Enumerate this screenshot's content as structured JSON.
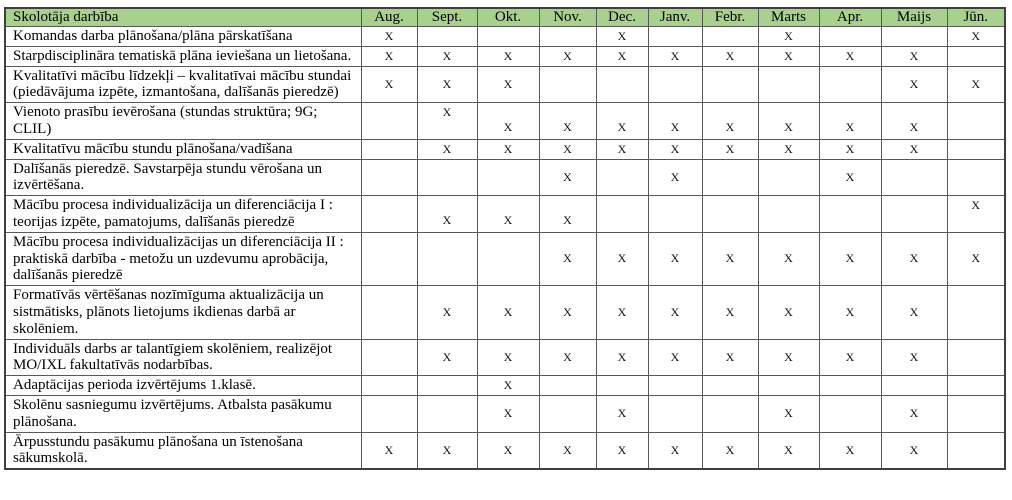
{
  "table": {
    "header_label": "Skolotāja darbība",
    "months": [
      "Aug.",
      "Sept.",
      "Okt.",
      "Nov.",
      "Dec.",
      "Janv.",
      "Febr.",
      "Marts",
      "Apr.",
      "Maijs",
      "Jūn."
    ],
    "colors": {
      "header_bg": "#a9d08e",
      "border": "#595959",
      "text": "#000000"
    },
    "rows": [
      {
        "activity": "Komandas darba plānošana/plāna pārskatīšana",
        "marks": [
          "X",
          "",
          "",
          "",
          "X",
          "",
          "",
          "X",
          "",
          "",
          "X"
        ]
      },
      {
        "activity": "Starpdisciplināra tematiskā plāna ieviešana un lietošana.",
        "marks": [
          "X",
          "X",
          "X",
          "X",
          "X",
          "X",
          "X",
          "X",
          "X",
          "X",
          ""
        ]
      },
      {
        "activity": "Kvalitatīvi mācību līdzekļi – kvalitatīvai mācību stundai (piedāvājuma izpēte, izmantošana, dalīšanās pieredzē)",
        "marks": [
          "X",
          "X",
          "X",
          "",
          "",
          "",
          "",
          "",
          "",
          "X",
          "X"
        ]
      },
      {
        "activity": "Vienoto prasību ievērošana (stundas struktūra; 9G; CLIL)",
        "marks": [
          "",
          "X",
          "X",
          "X",
          "X",
          "X",
          "X",
          "X",
          "X",
          "X",
          ""
        ],
        "mark_valign": [
          "",
          "t",
          "b",
          "b",
          "b",
          "b",
          "b",
          "b",
          "b",
          "b",
          ""
        ]
      },
      {
        "activity": "Kvalitatīvu mācību stundu plānošana/vadīšana",
        "marks": [
          "",
          "X",
          "X",
          "X",
          "X",
          "X",
          "X",
          "X",
          "X",
          "X",
          ""
        ]
      },
      {
        "activity": "Dalīšanās pieredzē. Savstarpēja stundu vērošana un izvērtēšana.",
        "marks": [
          "",
          "",
          "",
          "X",
          "",
          "X",
          "",
          "",
          "X",
          "",
          ""
        ]
      },
      {
        "activity": "Mācību procesa individualizācija un diferenciācija I : teorijas izpēte, pamatojums, dalīšanās pieredzē",
        "marks": [
          "",
          "X",
          "X",
          "X",
          "",
          "",
          "",
          "",
          "",
          "",
          "X"
        ],
        "mark_valign": [
          "",
          "b",
          "b",
          "b",
          "",
          "",
          "",
          "",
          "",
          "",
          "t"
        ]
      },
      {
        "activity": "Mācību procesa individualizācijas un diferenciācija II : praktiskā darbība -  metožu un uzdevumu aprobācija, dalīšanās pieredzē",
        "marks": [
          "",
          "",
          "",
          "X",
          "X",
          "X",
          "X",
          "X",
          "X",
          "X",
          "X"
        ]
      },
      {
        "activity": "Formatīvās vērtēšanas nozīmīguma aktualizācija un sistmātisks, plānots lietojums ikdienas darbā ar skolēniem.",
        "marks": [
          "",
          "X",
          "X",
          "X",
          "X",
          "X",
          "X",
          "X",
          "X",
          "X",
          ""
        ]
      },
      {
        "activity": "Individuāls darbs ar talantīgiem skolēniem, realizējot MO/IXL fakultatīvās nodarbības.",
        "marks": [
          "",
          "X",
          "X",
          "X",
          "X",
          "X",
          "X",
          "X",
          "X",
          "X",
          ""
        ]
      },
      {
        "activity": "Adaptācijas perioda izvērtējums 1.klasē.",
        "marks": [
          "",
          "",
          "X",
          "",
          "",
          "",
          "",
          "",
          "",
          "",
          ""
        ]
      },
      {
        "activity": "Skolēnu sasniegumu izvērtējums. Atbalsta pasākumu plānošana.",
        "marks": [
          "",
          "",
          "X",
          "",
          "X",
          "",
          "",
          "X",
          "",
          "X",
          ""
        ]
      },
      {
        "activity": "Ārpusstundu pasākumu plānošana un īstenošana sākumskolā.",
        "marks": [
          "X",
          "X",
          "X",
          "X",
          "X",
          "X",
          "X",
          "X",
          "X",
          "X",
          ""
        ]
      }
    ]
  }
}
